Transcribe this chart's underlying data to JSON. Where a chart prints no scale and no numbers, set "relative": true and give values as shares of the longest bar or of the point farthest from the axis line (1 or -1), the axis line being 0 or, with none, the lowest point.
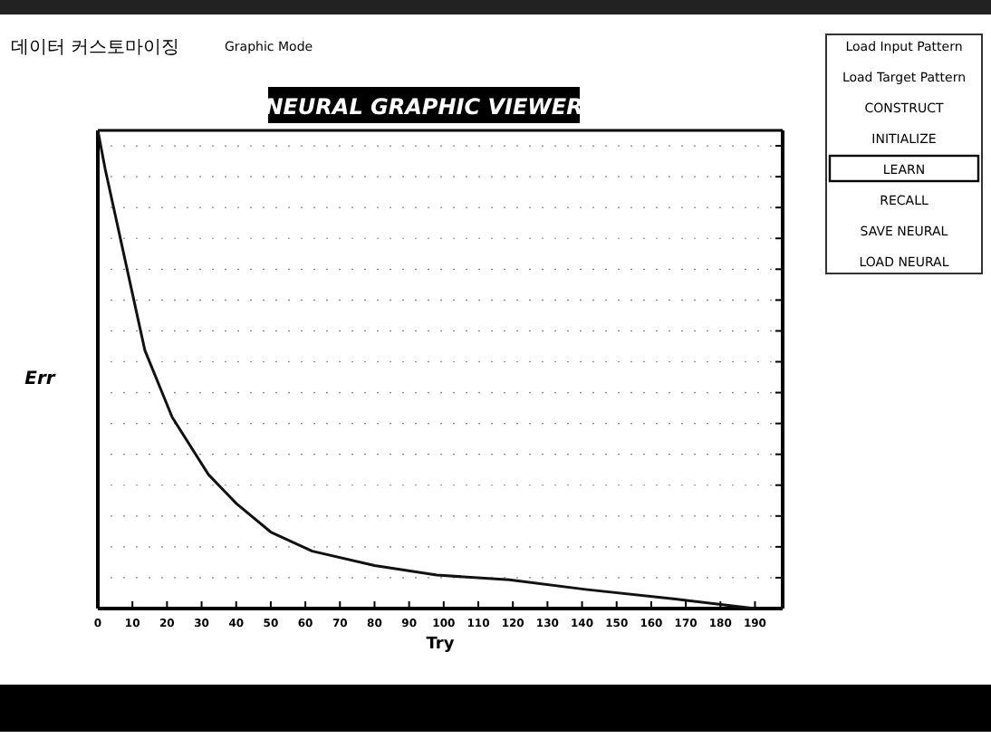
{
  "chart_data": {
    "type": "line",
    "title": "NEURAL GRAPHIC VIEWER",
    "xlabel": "Try",
    "ylabel": "Err",
    "relative": true,
    "x": [
      0,
      2.1,
      13.6,
      21.5,
      32,
      40,
      50,
      62,
      80,
      98,
      119,
      141,
      167,
      190
    ],
    "series": [
      {
        "color": "#111111",
        "values": [
          1,
          0.92,
          0.54,
          0.4,
          0.28,
          0.22,
          0.16,
          0.12,
          0.09,
          0.07,
          0.06,
          0.04,
          0.02,
          0
        ]
      }
    ],
    "xlim": [
      0,
      198
    ],
    "xticks": [
      0,
      10,
      20,
      30,
      40,
      50,
      60,
      70,
      80,
      90,
      100,
      110,
      120,
      130,
      140,
      150,
      160,
      170,
      180,
      190
    ],
    "grid": "y",
    "marker": "none",
    "line_style": "solid",
    "annotations": [
      "데이터 커스토마이징",
      "Graphic Mode",
      "Load Input Pattern",
      "Load Target Pattern",
      "CONSTRUCT",
      "INITIALIZE",
      "LEARN",
      "RECALL",
      "SAVE NEURAL",
      "LOAD NEURAL"
    ]
  }
}
